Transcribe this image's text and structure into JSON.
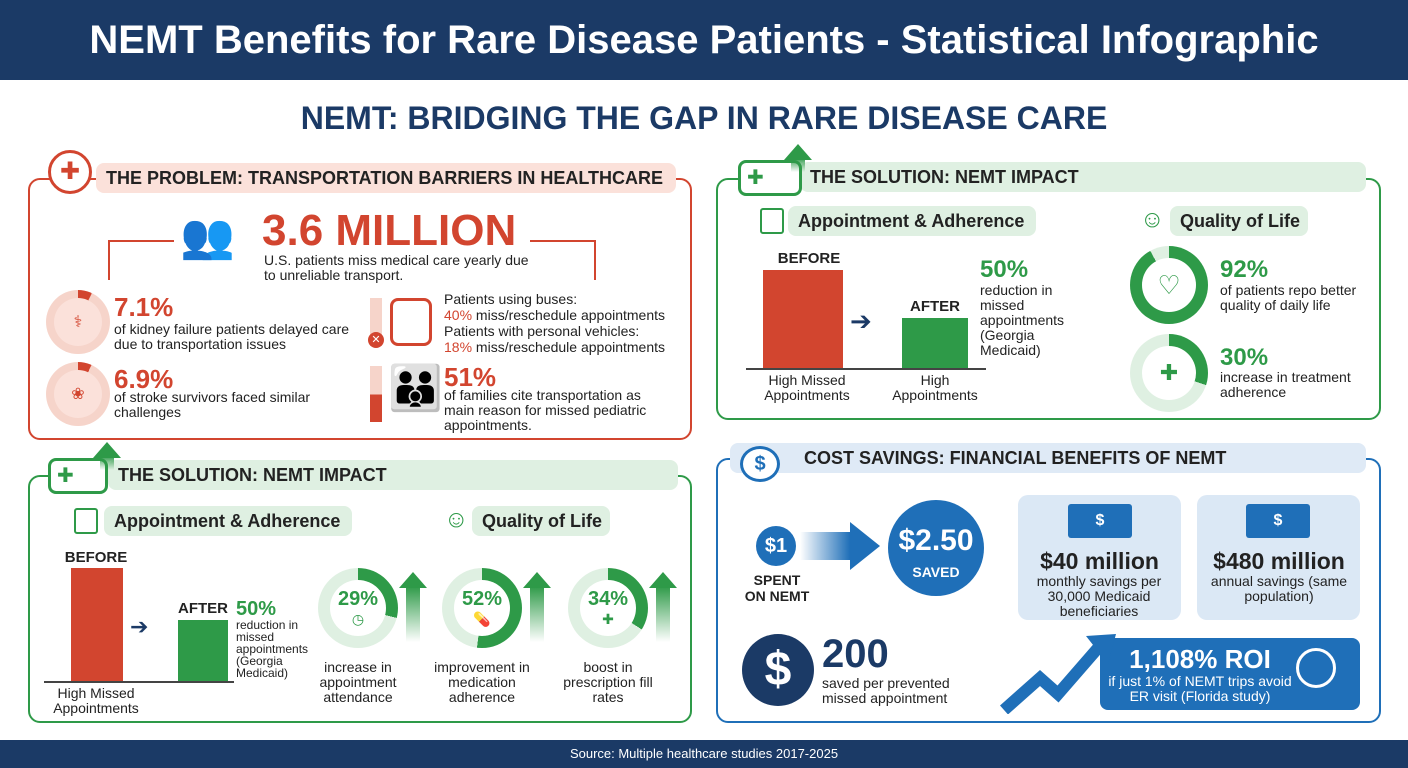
{
  "header": {
    "title": "NEMT Benefits for Rare Disease Patients - Statistical Infographic"
  },
  "subtitle": "NEMT: BRIDGING THE GAP IN RARE DISEASE CARE",
  "colors": {
    "navy": "#1b3a66",
    "red": "#d2452f",
    "green": "#2e9a48",
    "blue": "#1f6fb8"
  },
  "problem": {
    "title": "THE PROBLEM: TRANSPORTATION BARRIERS IN HEALTHCARE",
    "headline": "3.6 MILLION",
    "headline_desc": "U.S. patients miss medical care yearly due to unreliable transport.",
    "kidney": {
      "value": "7.1%",
      "desc": "of kidney failure patients delayed care due to transportation issues",
      "icon": "kidney-icon"
    },
    "stroke": {
      "value": "6.9%",
      "desc": "of stroke survivors faced similar challenges",
      "icon": "brain-icon"
    },
    "bus": {
      "line1": "Patients using buses:",
      "pct1": "40%",
      "rest1": " miss/reschedule appointments",
      "line2": "Patients with personal vehicles:",
      "pct2": "18%",
      "rest2": " miss/reschedule appointments",
      "icon": "bus-icon"
    },
    "families": {
      "value": "51%",
      "desc": "of families cite transportation as main reason for missed pediatric appointments.",
      "icon": "family-icon"
    }
  },
  "solution_right": {
    "title": "THE SOLUTION: NEMT IMPACT",
    "appt_title": "Appointment & Adherence",
    "qol_title": "Quality of Life",
    "before": "BEFORE",
    "after": "AFTER",
    "before_label": "High Missed Appointments",
    "after_label": "High Appointments",
    "reduction": "50%",
    "reduction_desc": "reduction in missed appointments (Georgia Medicaid)",
    "qol": [
      {
        "value": "92%",
        "pct": 92,
        "desc": "of patients repo better quality of daily life",
        "icon": "heart-check-icon"
      },
      {
        "value": "30%",
        "pct": 30,
        "desc": "increase in treatment adherence",
        "icon": "medicine-bottle-icon"
      }
    ]
  },
  "solution_left": {
    "title": "THE SOLUTION: NEMT IMPACT",
    "appt_title": "Appointment & Adherence",
    "qol_title": "Quality of Life",
    "before": "BEFORE",
    "after": "AFTER",
    "before_label": "High Missed Appointments",
    "reduction": "50%",
    "reduction_desc": "reduction in missed appointments (Georgia Medicaid)",
    "rings": [
      {
        "value": "29%",
        "pct": 29,
        "desc": "increase in appointment attendance",
        "icon": "clock-icon"
      },
      {
        "value": "52%",
        "pct": 52,
        "desc": "improvement in medication adherence",
        "icon": "pill-icon"
      },
      {
        "value": "34%",
        "pct": 34,
        "desc": "boost in prescription fill rates",
        "icon": "first-aid-kit-icon"
      }
    ]
  },
  "cost": {
    "title": "COST SAVINGS: FINANCIAL BENEFITS OF NEMT",
    "spent": "$1",
    "spent_label": "SPENT ON NEMT",
    "saved": "$2.50",
    "saved_label": "SAVED",
    "monthly": "$40 million",
    "monthly_desc": "monthly savings per 30,000 Medicaid beneficiaries",
    "annual": "$480 million",
    "annual_desc": "annual savings (same population)",
    "per_appt": "200",
    "per_appt_desc": "saved per prevented missed appointment",
    "roi": "1,108% ROI",
    "roi_desc": "if just 1% of NEMT trips avoid ER visit (Florida study)"
  },
  "footer": "Source: Multiple healthcare studies 2017-2025"
}
